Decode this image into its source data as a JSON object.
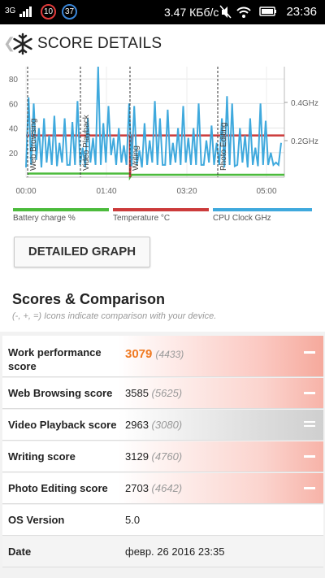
{
  "status": {
    "network": "3G",
    "badge1": "10",
    "badge2": "37",
    "speed": "3.47 КБб/с",
    "time": "23:36"
  },
  "appbar": {
    "title": "SCORE DETAILS",
    "back_icon": "chevron-left-icon",
    "logo_icon": "snowflake-icon"
  },
  "chart_data": {
    "type": "line",
    "x_ticks": [
      "00:00",
      "01:40",
      "03:20",
      "05:00"
    ],
    "y_ticks_left": [
      20,
      40,
      60,
      80
    ],
    "y_ticks_right": [
      "0.2GHz",
      "0.4GHz"
    ],
    "sections": [
      "Web Browsing",
      "Video Playback",
      "Writing",
      "Photo Editing"
    ],
    "series": [
      {
        "name": "Battery charge %",
        "color": "#4cbb3c"
      },
      {
        "name": "Temperature °C",
        "color": "#cc3b3b"
      },
      {
        "name": "CPU Clock GHz",
        "color": "#3fa9dd"
      }
    ]
  },
  "detailed_graph_button": "DETAILED GRAPH",
  "scores_title": "Scores & Comparison",
  "scores_subtitle": "(-, +, =) Icons indicate comparison with your device.",
  "rows": [
    {
      "label": "Work performance score",
      "value": "3079",
      "compare": "(4433)"
    },
    {
      "label": "Web Browsing score",
      "value": "3585",
      "compare": "(5625)"
    },
    {
      "label": "Video Playback score",
      "value": "2963",
      "compare": "(3080)"
    },
    {
      "label": "Writing score",
      "value": "3129",
      "compare": "(4760)"
    },
    {
      "label": "Photo Editing score",
      "value": "2703",
      "compare": "(4642)"
    },
    {
      "label": "OS Version",
      "value": "5.0"
    },
    {
      "label": "Date",
      "value": "февр. 26 2016 23:35"
    }
  ]
}
